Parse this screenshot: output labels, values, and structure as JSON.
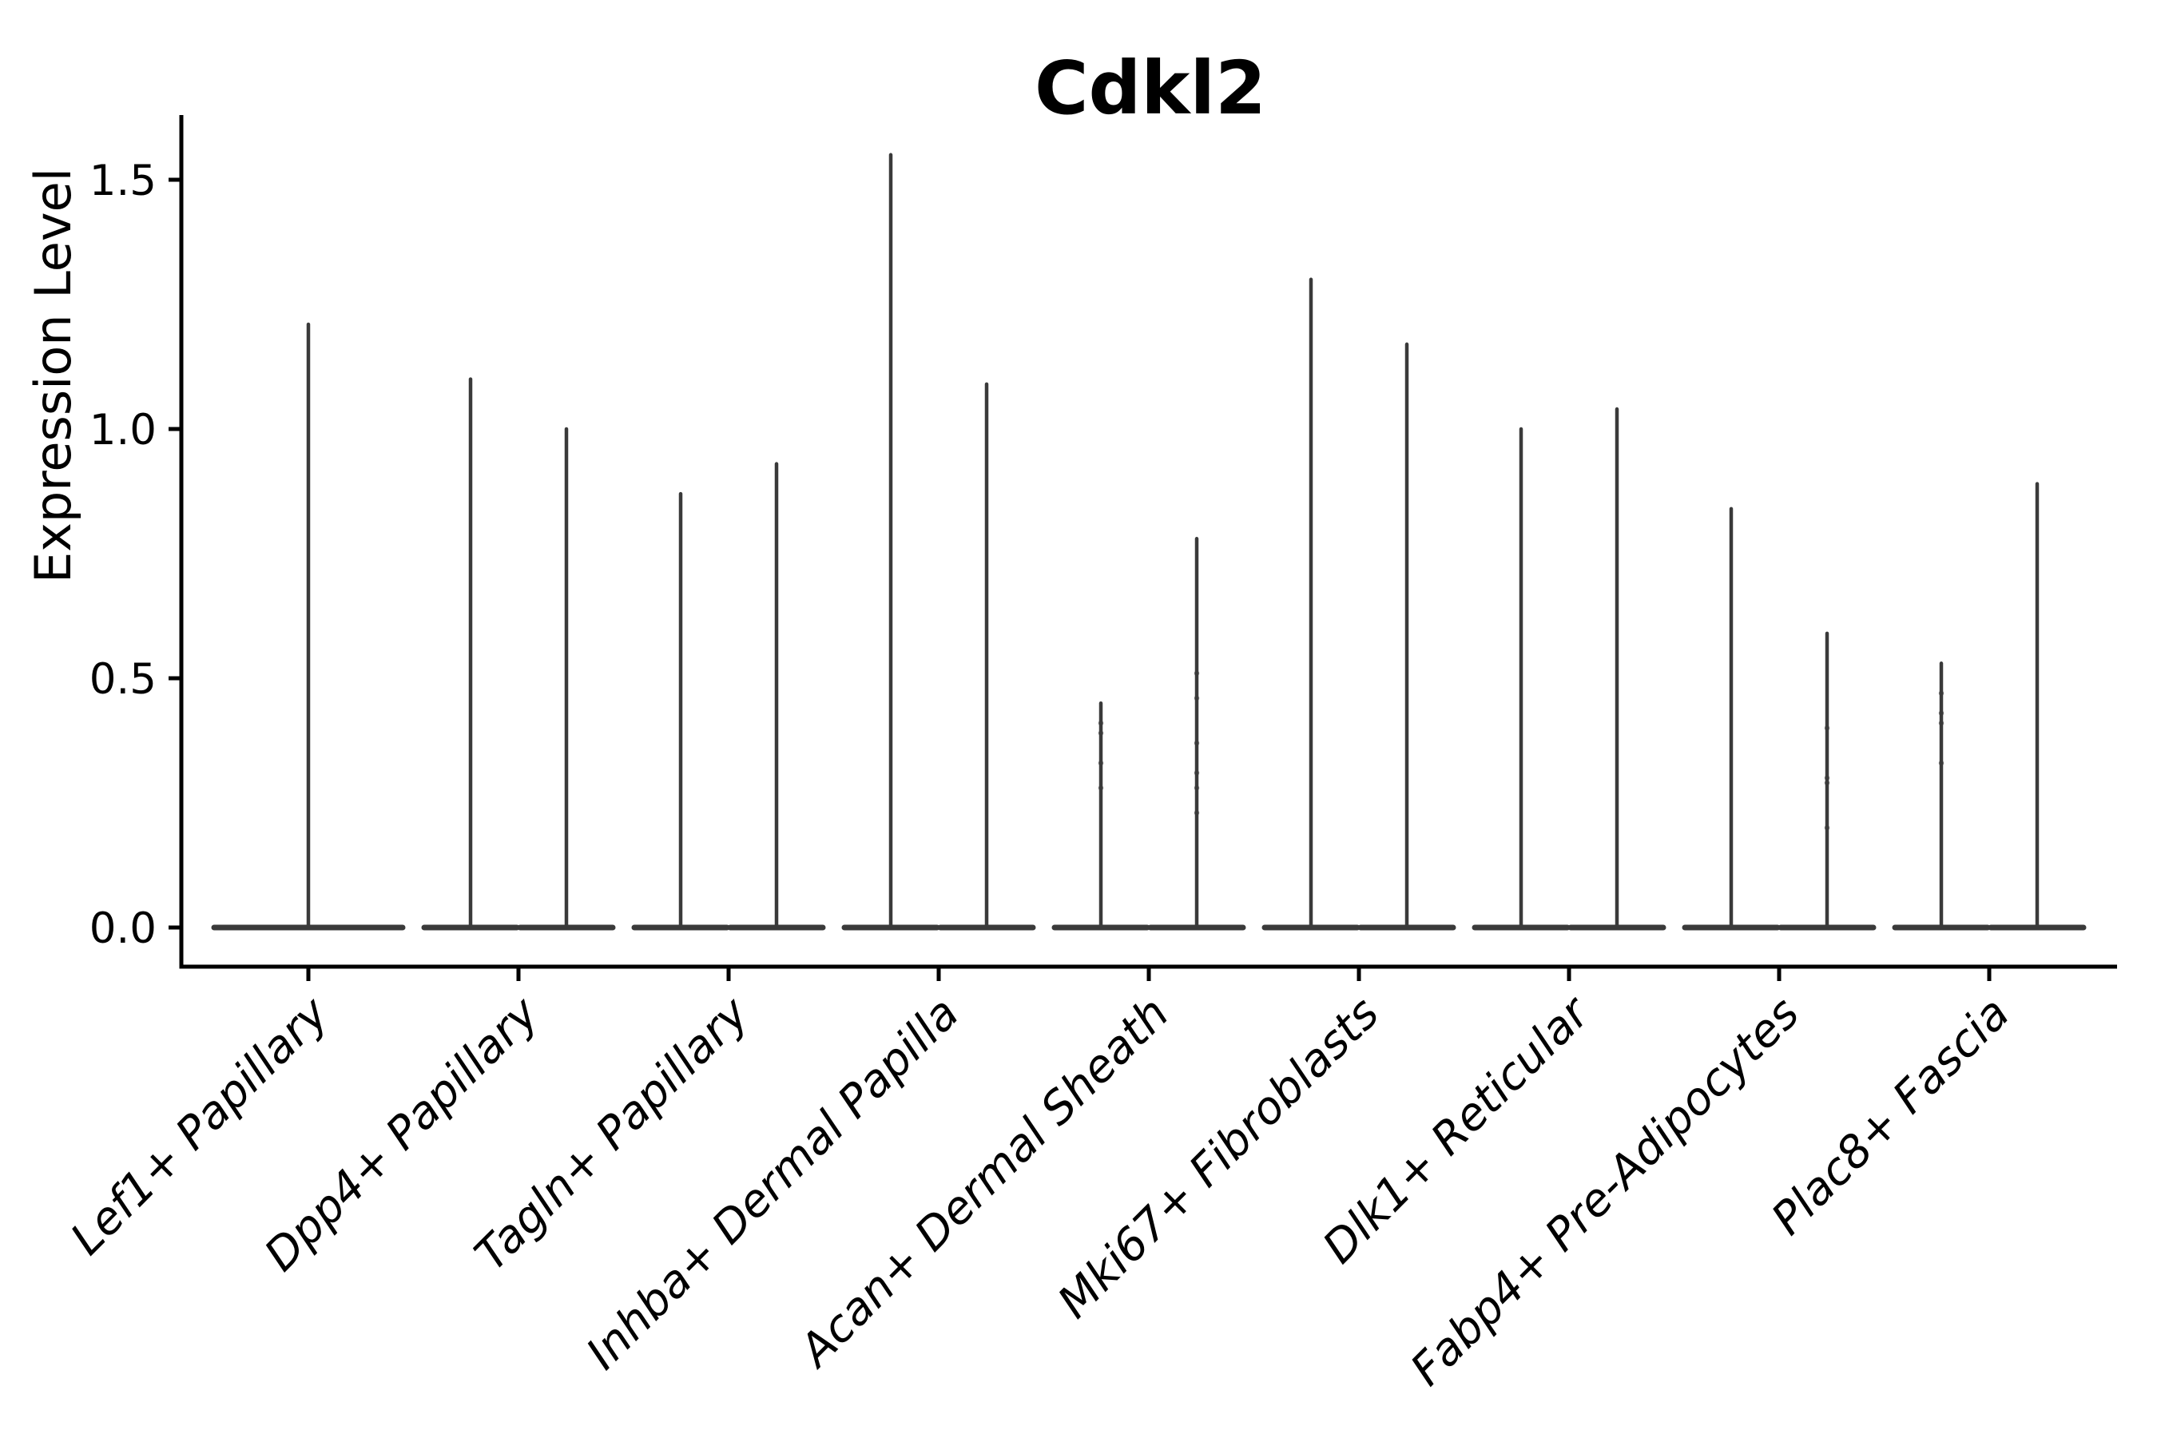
{
  "title": "Cdkl2",
  "y_axis": {
    "label": "Expression Level",
    "tick_labels": [
      "0.0",
      "0.5",
      "1.0",
      "1.5"
    ]
  },
  "colors": {
    "violin": "#3a3a3a",
    "axis": "#000000",
    "text": "#000000",
    "background": "#ffffff"
  },
  "chart_data": {
    "type": "violin",
    "title": "Cdkl2",
    "xlabel": "",
    "ylabel": "Expression Level",
    "yticks": [
      0.0,
      0.5,
      1.0,
      1.5
    ],
    "ylim": [
      -0.08,
      1.63
    ],
    "grid": false,
    "legend": "none",
    "description": "Violin plot of Cdkl2 expression per fibroblast cluster; most cells at 0 so each violin collapses to a flat base at 0 with a thin spike to its maximum. First cluster has a single centered violin; all other clusters have two side-by-side violins.",
    "groups": [
      {
        "label": "Lef1+ Papillary",
        "violins": [
          {
            "max": 1.21,
            "points": []
          }
        ]
      },
      {
        "label": "Dpp4+ Papillary",
        "violins": [
          {
            "max": 1.1,
            "points": []
          },
          {
            "max": 1.0,
            "points": []
          }
        ]
      },
      {
        "label": "Tagln+ Papillary",
        "violins": [
          {
            "max": 0.87,
            "points": []
          },
          {
            "max": 0.93,
            "points": []
          }
        ]
      },
      {
        "label": "Inhba+ Dermal Papilla",
        "violins": [
          {
            "max": 1.55,
            "points": []
          },
          {
            "max": 1.09,
            "points": []
          }
        ]
      },
      {
        "label": "Acan+ Dermal Sheath",
        "violins": [
          {
            "max": 0.45,
            "points": [
              0.41,
              0.39,
              0.33,
              0.28
            ]
          },
          {
            "max": 0.78,
            "points": [
              0.51,
              0.46,
              0.37,
              0.31,
              0.28,
              0.23
            ]
          }
        ]
      },
      {
        "label": "Mki67+ Fibroblasts",
        "violins": [
          {
            "max": 1.3,
            "points": []
          },
          {
            "max": 1.17,
            "points": []
          }
        ]
      },
      {
        "label": "Dlk1+ Reticular",
        "violins": [
          {
            "max": 1.0,
            "points": []
          },
          {
            "max": 1.04,
            "points": []
          }
        ]
      },
      {
        "label": "Fabp4+ Pre-Adipocytes",
        "violins": [
          {
            "max": 0.84,
            "points": []
          },
          {
            "max": 0.59,
            "points": [
              0.4,
              0.3,
              0.29,
              0.2
            ]
          }
        ]
      },
      {
        "label": "Plac8+ Fascia",
        "violins": [
          {
            "max": 0.53,
            "points": [
              0.47,
              0.43,
              0.41,
              0.33
            ]
          },
          {
            "max": 0.89,
            "points": []
          }
        ]
      }
    ]
  }
}
